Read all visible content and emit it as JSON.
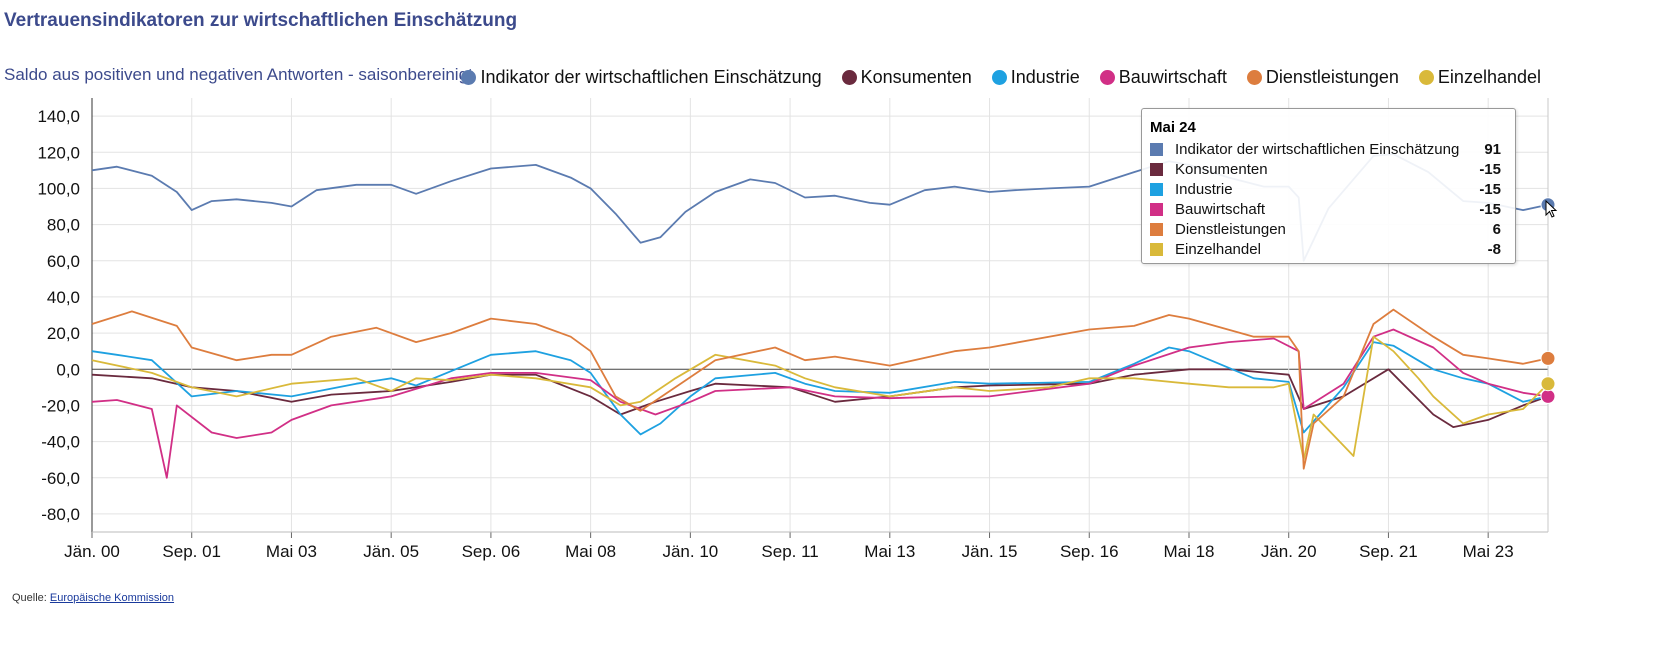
{
  "title": "Vertrauensindikatoren zur wirtschaftlichen Einschätzung",
  "subtitle": "Saldo aus positiven und negativen Antworten - saisonbereinigt",
  "source": {
    "label": "Quelle:",
    "link_text": "Europäische Kommission"
  },
  "tooltip": {
    "header": "Mai 24",
    "rows": [
      {
        "name": "Indikator der wirtschaftlichen Einschätzung",
        "value": "91",
        "color": "#5b7bb0"
      },
      {
        "name": "Konsumenten",
        "value": "-15",
        "color": "#6a2a3e"
      },
      {
        "name": "Industrie",
        "value": "-15",
        "color": "#1ea1e1"
      },
      {
        "name": "Bauwirtschaft",
        "value": "-15",
        "color": "#d12f86"
      },
      {
        "name": "Dienstleistungen",
        "value": "6",
        "color": "#dd7d3e"
      },
      {
        "name": "Einzelhandel",
        "value": "-8",
        "color": "#d9b93a"
      }
    ]
  },
  "chart_data": {
    "type": "line",
    "title": "Vertrauensindikatoren zur wirtschaftlichen Einschätzung",
    "subtitle": "Saldo aus positiven und negativen Antworten - saisonbereinigt",
    "x_start": "2000-01",
    "x_end": "2024-05",
    "x_tick_labels": [
      "Jän. 00",
      "Sep. 01",
      "Mai 03",
      "Jän. 05",
      "Sep. 06",
      "Mai 08",
      "Jän. 10",
      "Sep. 11",
      "Mai 13",
      "Jän. 15",
      "Sep. 16",
      "Mai 18",
      "Jän. 20",
      "Sep. 21",
      "Mai 23"
    ],
    "x_tick_dates": [
      "2000-01",
      "2001-09",
      "2003-05",
      "2005-01",
      "2006-09",
      "2008-05",
      "2010-01",
      "2011-09",
      "2013-05",
      "2015-01",
      "2016-09",
      "2018-05",
      "2020-01",
      "2021-09",
      "2023-05"
    ],
    "ylim": [
      -90,
      150
    ],
    "y_ticks": [
      140,
      120,
      100,
      80,
      60,
      40,
      20,
      0,
      -20,
      -40,
      -60,
      -80
    ],
    "y_tick_labels": [
      "140,0",
      "120,0",
      "100,0",
      "80,0",
      "60,0",
      "40,0",
      "20,0",
      "0,0",
      "-20,0",
      "-40,0",
      "-60,0",
      "-80,0"
    ],
    "grid": true,
    "legend_position": "top-right",
    "series": [
      {
        "name": "Indikator der wirtschaftlichen Einschätzung",
        "color": "#5b7bb0",
        "points": [
          [
            "2000-01",
            110
          ],
          [
            "2000-06",
            112
          ],
          [
            "2001-01",
            107
          ],
          [
            "2001-06",
            98
          ],
          [
            "2001-09",
            88
          ],
          [
            "2002-01",
            93
          ],
          [
            "2002-06",
            94
          ],
          [
            "2003-01",
            92
          ],
          [
            "2003-05",
            90
          ],
          [
            "2003-10",
            99
          ],
          [
            "2004-06",
            102
          ],
          [
            "2005-01",
            102
          ],
          [
            "2005-06",
            97
          ],
          [
            "2006-01",
            104
          ],
          [
            "2006-09",
            111
          ],
          [
            "2007-06",
            113
          ],
          [
            "2008-01",
            106
          ],
          [
            "2008-05",
            100
          ],
          [
            "2008-10",
            86
          ],
          [
            "2009-03",
            70
          ],
          [
            "2009-07",
            73
          ],
          [
            "2009-12",
            87
          ],
          [
            "2010-06",
            98
          ],
          [
            "2011-01",
            105
          ],
          [
            "2011-06",
            103
          ],
          [
            "2011-12",
            95
          ],
          [
            "2012-06",
            96
          ],
          [
            "2013-01",
            92
          ],
          [
            "2013-05",
            91
          ],
          [
            "2013-12",
            99
          ],
          [
            "2014-06",
            101
          ],
          [
            "2015-01",
            98
          ],
          [
            "2015-06",
            99
          ],
          [
            "2016-01",
            100
          ],
          [
            "2016-09",
            101
          ],
          [
            "2017-06",
            109
          ],
          [
            "2018-01",
            115
          ],
          [
            "2018-05",
            113
          ],
          [
            "2019-01",
            106
          ],
          [
            "2019-08",
            101
          ],
          [
            "2020-01",
            101
          ],
          [
            "2020-03",
            95
          ],
          [
            "2020-04",
            60
          ],
          [
            "2020-09",
            89
          ],
          [
            "2021-06",
            118
          ],
          [
            "2021-10",
            119
          ],
          [
            "2022-05",
            109
          ],
          [
            "2022-12",
            93
          ],
          [
            "2023-05",
            92
          ],
          [
            "2023-12",
            88
          ],
          [
            "2024-05",
            91
          ]
        ]
      },
      {
        "name": "Konsumenten",
        "color": "#6a2a3e",
        "points": [
          [
            "2000-01",
            -3
          ],
          [
            "2001-01",
            -5
          ],
          [
            "2001-09",
            -10
          ],
          [
            "2002-06",
            -12
          ],
          [
            "2003-05",
            -18
          ],
          [
            "2004-01",
            -14
          ],
          [
            "2005-01",
            -12
          ],
          [
            "2006-01",
            -7
          ],
          [
            "2006-09",
            -3
          ],
          [
            "2007-06",
            -3
          ],
          [
            "2008-05",
            -15
          ],
          [
            "2008-11",
            -25
          ],
          [
            "2009-06",
            -18
          ],
          [
            "2010-01",
            -12
          ],
          [
            "2010-06",
            -8
          ],
          [
            "2011-09",
            -10
          ],
          [
            "2012-06",
            -18
          ],
          [
            "2013-05",
            -15
          ],
          [
            "2014-06",
            -10
          ],
          [
            "2015-01",
            -9
          ],
          [
            "2016-09",
            -8
          ],
          [
            "2017-06",
            -3
          ],
          [
            "2018-05",
            0
          ],
          [
            "2019-01",
            0
          ],
          [
            "2020-01",
            -3
          ],
          [
            "2020-04",
            -22
          ],
          [
            "2020-12",
            -15
          ],
          [
            "2021-09",
            0
          ],
          [
            "2022-06",
            -25
          ],
          [
            "2022-10",
            -32
          ],
          [
            "2023-05",
            -28
          ],
          [
            "2023-12",
            -20
          ],
          [
            "2024-05",
            -15
          ]
        ]
      },
      {
        "name": "Industrie",
        "color": "#1ea1e1",
        "points": [
          [
            "2000-01",
            10
          ],
          [
            "2000-06",
            8
          ],
          [
            "2001-01",
            5
          ],
          [
            "2001-09",
            -15
          ],
          [
            "2002-06",
            -12
          ],
          [
            "2003-05",
            -15
          ],
          [
            "2004-06",
            -8
          ],
          [
            "2005-01",
            -5
          ],
          [
            "2005-06",
            -9
          ],
          [
            "2006-09",
            8
          ],
          [
            "2007-06",
            10
          ],
          [
            "2008-01",
            5
          ],
          [
            "2008-05",
            -2
          ],
          [
            "2008-11",
            -25
          ],
          [
            "2009-03",
            -36
          ],
          [
            "2009-07",
            -30
          ],
          [
            "2010-01",
            -15
          ],
          [
            "2010-06",
            -5
          ],
          [
            "2011-06",
            -2
          ],
          [
            "2011-12",
            -8
          ],
          [
            "2012-06",
            -12
          ],
          [
            "2013-05",
            -13
          ],
          [
            "2014-06",
            -7
          ],
          [
            "2015-01",
            -8
          ],
          [
            "2016-09",
            -7
          ],
          [
            "2017-06",
            3
          ],
          [
            "2018-01",
            12
          ],
          [
            "2018-05",
            10
          ],
          [
            "2019-06",
            -5
          ],
          [
            "2020-01",
            -7
          ],
          [
            "2020-04",
            -35
          ],
          [
            "2020-12",
            -10
          ],
          [
            "2021-06",
            15
          ],
          [
            "2021-10",
            13
          ],
          [
            "2022-06",
            0
          ],
          [
            "2022-12",
            -5
          ],
          [
            "2023-05",
            -8
          ],
          [
            "2023-12",
            -18
          ],
          [
            "2024-05",
            -15
          ]
        ]
      },
      {
        "name": "Bauwirtschaft",
        "color": "#d12f86",
        "points": [
          [
            "2000-01",
            -18
          ],
          [
            "2000-06",
            -17
          ],
          [
            "2001-01",
            -22
          ],
          [
            "2001-04",
            -60
          ],
          [
            "2001-06",
            -20
          ],
          [
            "2002-01",
            -35
          ],
          [
            "2002-06",
            -38
          ],
          [
            "2003-01",
            -35
          ],
          [
            "2003-05",
            -28
          ],
          [
            "2004-01",
            -20
          ],
          [
            "2005-01",
            -15
          ],
          [
            "2006-01",
            -5
          ],
          [
            "2006-09",
            -2
          ],
          [
            "2007-06",
            -2
          ],
          [
            "2008-05",
            -6
          ],
          [
            "2008-11",
            -18
          ],
          [
            "2009-06",
            -25
          ],
          [
            "2010-01",
            -18
          ],
          [
            "2010-06",
            -12
          ],
          [
            "2011-09",
            -10
          ],
          [
            "2012-06",
            -15
          ],
          [
            "2013-05",
            -16
          ],
          [
            "2014-06",
            -15
          ],
          [
            "2015-01",
            -15
          ],
          [
            "2016-09",
            -8
          ],
          [
            "2017-06",
            2
          ],
          [
            "2018-05",
            12
          ],
          [
            "2019-01",
            15
          ],
          [
            "2019-10",
            17
          ],
          [
            "2020-03",
            10
          ],
          [
            "2020-04",
            -22
          ],
          [
            "2020-12",
            -8
          ],
          [
            "2021-06",
            18
          ],
          [
            "2021-10",
            22
          ],
          [
            "2022-06",
            12
          ],
          [
            "2022-12",
            -2
          ],
          [
            "2023-05",
            -8
          ],
          [
            "2023-12",
            -13
          ],
          [
            "2024-05",
            -15
          ]
        ]
      },
      {
        "name": "Dienstleistungen",
        "color": "#dd7d3e",
        "points": [
          [
            "2000-01",
            25
          ],
          [
            "2000-09",
            32
          ],
          [
            "2001-06",
            24
          ],
          [
            "2001-09",
            12
          ],
          [
            "2002-06",
            5
          ],
          [
            "2003-01",
            8
          ],
          [
            "2003-05",
            8
          ],
          [
            "2004-01",
            18
          ],
          [
            "2004-10",
            23
          ],
          [
            "2005-06",
            15
          ],
          [
            "2006-01",
            20
          ],
          [
            "2006-09",
            28
          ],
          [
            "2007-06",
            25
          ],
          [
            "2008-01",
            18
          ],
          [
            "2008-05",
            10
          ],
          [
            "2008-10",
            -15
          ],
          [
            "2009-03",
            -23
          ],
          [
            "2009-10",
            -10
          ],
          [
            "2010-06",
            5
          ],
          [
            "2011-06",
            12
          ],
          [
            "2011-12",
            5
          ],
          [
            "2012-06",
            7
          ],
          [
            "2013-05",
            2
          ],
          [
            "2014-06",
            10
          ],
          [
            "2015-01",
            12
          ],
          [
            "2016-09",
            22
          ],
          [
            "2017-06",
            24
          ],
          [
            "2018-01",
            30
          ],
          [
            "2018-05",
            28
          ],
          [
            "2019-06",
            18
          ],
          [
            "2020-01",
            18
          ],
          [
            "2020-03",
            10
          ],
          [
            "2020-04",
            -55
          ],
          [
            "2020-06",
            -30
          ],
          [
            "2020-12",
            -15
          ],
          [
            "2021-06",
            25
          ],
          [
            "2021-10",
            33
          ],
          [
            "2022-06",
            18
          ],
          [
            "2022-12",
            8
          ],
          [
            "2023-05",
            6
          ],
          [
            "2023-12",
            3
          ],
          [
            "2024-05",
            6
          ]
        ]
      },
      {
        "name": "Einzelhandel",
        "color": "#d9b93a",
        "points": [
          [
            "2000-01",
            5
          ],
          [
            "2001-01",
            -2
          ],
          [
            "2001-09",
            -10
          ],
          [
            "2002-06",
            -15
          ],
          [
            "2003-05",
            -8
          ],
          [
            "2004-06",
            -5
          ],
          [
            "2005-01",
            -12
          ],
          [
            "2005-06",
            -5
          ],
          [
            "2006-01",
            -6
          ],
          [
            "2006-09",
            -3
          ],
          [
            "2007-06",
            -5
          ],
          [
            "2008-05",
            -10
          ],
          [
            "2008-11",
            -20
          ],
          [
            "2009-03",
            -18
          ],
          [
            "2009-10",
            -5
          ],
          [
            "2010-06",
            8
          ],
          [
            "2011-06",
            2
          ],
          [
            "2011-12",
            -5
          ],
          [
            "2012-06",
            -10
          ],
          [
            "2013-05",
            -15
          ],
          [
            "2014-06",
            -10
          ],
          [
            "2015-01",
            -12
          ],
          [
            "2016-01",
            -10
          ],
          [
            "2016-09",
            -5
          ],
          [
            "2017-06",
            -5
          ],
          [
            "2018-05",
            -8
          ],
          [
            "2019-01",
            -10
          ],
          [
            "2019-10",
            -10
          ],
          [
            "2020-01",
            -8
          ],
          [
            "2020-04",
            -50
          ],
          [
            "2020-06",
            -25
          ],
          [
            "2021-02",
            -48
          ],
          [
            "2021-06",
            18
          ],
          [
            "2021-10",
            10
          ],
          [
            "2022-03",
            -5
          ],
          [
            "2022-06",
            -15
          ],
          [
            "2022-12",
            -30
          ],
          [
            "2023-05",
            -25
          ],
          [
            "2023-12",
            -22
          ],
          [
            "2024-05",
            -8
          ]
        ]
      }
    ]
  }
}
